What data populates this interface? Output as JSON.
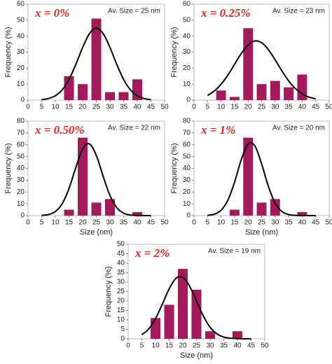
{
  "chart_data": [
    {
      "type": "bar",
      "label": "x = 0%",
      "annotation": "Av. Size = 25 nm",
      "ylabel": "Frequency (%)",
      "x": [
        15,
        20,
        25,
        30,
        35,
        40
      ],
      "values": [
        15,
        10,
        51,
        5,
        5,
        13
      ],
      "color": "#a3195b",
      "xlim": [
        0,
        50
      ],
      "xticks": [
        0,
        5,
        10,
        15,
        20,
        25,
        30,
        35,
        40,
        45,
        50
      ],
      "ylim": [
        0,
        60
      ],
      "yticks": [
        0,
        10,
        20,
        30,
        40,
        50,
        60
      ],
      "fit": {
        "type": "line",
        "color": "#000000",
        "x": [
          5,
          7.5,
          10,
          12.5,
          15,
          17.5,
          20,
          22.5,
          25,
          27.5,
          30,
          32.5,
          35,
          37.5,
          40,
          42.5,
          45
        ],
        "values": [
          0.3,
          1.0,
          2.7,
          6.4,
          12.9,
          22.3,
          32.9,
          41.6,
          45,
          41.6,
          32.9,
          22.3,
          12.9,
          6.4,
          2.7,
          1.0,
          0.3
        ]
      }
    },
    {
      "type": "bar",
      "label": "x = 0.25%",
      "annotation": "Av. Size = 23 nm",
      "ylabel": "Frequency (%)",
      "x": [
        10,
        15,
        20,
        25,
        30,
        35,
        40
      ],
      "values": [
        6,
        2,
        45,
        10,
        12,
        8,
        16
      ],
      "color": "#a3195b",
      "xlim": [
        0,
        50
      ],
      "xticks": [
        0,
        5,
        10,
        15,
        20,
        25,
        30,
        35,
        40,
        45,
        50
      ],
      "ylim": [
        0,
        60
      ],
      "yticks": [
        0,
        10,
        20,
        30,
        40,
        50,
        60
      ],
      "fit": {
        "type": "line",
        "color": "#000000",
        "x": [
          5,
          7.5,
          10,
          12.5,
          15,
          17.5,
          20,
          22.5,
          25,
          27.5,
          30,
          32.5,
          35,
          37.5,
          40,
          42.5,
          45
        ],
        "values": [
          2.9,
          5.7,
          9.9,
          15.6,
          22.4,
          29.2,
          34.5,
          37,
          35.9,
          31.6,
          25.2,
          18.3,
          12.0,
          7.2,
          3.9,
          1.9,
          0.8
        ]
      }
    },
    {
      "type": "bar",
      "label": "x = 0.50%",
      "annotation": "Av. Size = 22 nm",
      "ylabel": "Frequency (%)",
      "xlabel": "Size (nm)",
      "x": [
        15,
        20,
        25,
        30,
        40
      ],
      "values": [
        5,
        66,
        11,
        14,
        3
      ],
      "color": "#a3195b",
      "xlim": [
        0,
        50
      ],
      "xticks": [
        0,
        5,
        10,
        15,
        20,
        25,
        30,
        35,
        40,
        45,
        50
      ],
      "ylim": [
        0,
        80
      ],
      "yticks": [
        0,
        10,
        20,
        30,
        40,
        50,
        60,
        70,
        80
      ],
      "fit": {
        "type": "line",
        "color": "#000000",
        "x": [
          5,
          7.5,
          10,
          12.5,
          15,
          17.5,
          20,
          22.5,
          25,
          27.5,
          30,
          32.5,
          35,
          37.5,
          40,
          42.5,
          45
        ],
        "values": [
          0.2,
          0.9,
          3.4,
          10.0,
          22.9,
          40.7,
          56.3,
          60.7,
          51.0,
          33.3,
          17.0,
          6.7,
          2.1,
          0.5,
          0.1,
          0,
          0
        ]
      }
    },
    {
      "type": "bar",
      "label": "x = 1%",
      "annotation": "Av. Size = 20 nm",
      "ylabel": "Frequency (%)",
      "xlabel": "Size (nm)",
      "x": [
        15,
        20,
        25,
        30,
        40
      ],
      "values": [
        5,
        66,
        11,
        14,
        3
      ],
      "color": "#a3195b",
      "xlim": [
        0,
        50
      ],
      "xticks": [
        0,
        5,
        10,
        15,
        20,
        25,
        30,
        35,
        40,
        45,
        50
      ],
      "ylim": [
        0,
        80
      ],
      "yticks": [
        0,
        10,
        20,
        30,
        40,
        50,
        60,
        70,
        80
      ],
      "fit": {
        "type": "line",
        "color": "#000000",
        "x": [
          5,
          7.5,
          10,
          12.5,
          15,
          17.5,
          20,
          22.5,
          25,
          27.5,
          30,
          32.5,
          35,
          37.5,
          40,
          42.5,
          45
        ],
        "values": [
          0.2,
          1.2,
          4.5,
          12.9,
          28.3,
          47.5,
          60.7,
          59.0,
          43.8,
          24.8,
          10.7,
          3.5,
          0.9,
          0.2,
          0,
          0,
          0
        ]
      }
    },
    {
      "type": "bar",
      "label": "x = 2%",
      "annotation": "Av. Size = 19 nm",
      "ylabel": "Frequency (%)",
      "xlabel": "Size (nm)",
      "x": [
        10,
        15,
        20,
        25,
        30,
        40
      ],
      "values": [
        11,
        18,
        37,
        26,
        4,
        4
      ],
      "color": "#a3195b",
      "xlim": [
        0,
        50
      ],
      "xticks": [
        0,
        5,
        10,
        15,
        20,
        25,
        30,
        35,
        40,
        45,
        50
      ],
      "ylim": [
        0,
        50
      ],
      "yticks": [
        0,
        5,
        10,
        15,
        20,
        25,
        30,
        35,
        40,
        45,
        50
      ],
      "fit": {
        "type": "line",
        "color": "#000000",
        "x": [
          5,
          7.5,
          10,
          12.5,
          15,
          17.5,
          20,
          22.5,
          25,
          27.5,
          30,
          32.5,
          35,
          37.5,
          40,
          42.5,
          45
        ],
        "values": [
          2.2,
          5.2,
          10.7,
          18.3,
          26.4,
          32.0,
          32.5,
          27.8,
          20.0,
          12.1,
          6.1,
          2.6,
          0.9,
          0.3,
          0.1,
          0,
          0
        ]
      }
    }
  ]
}
